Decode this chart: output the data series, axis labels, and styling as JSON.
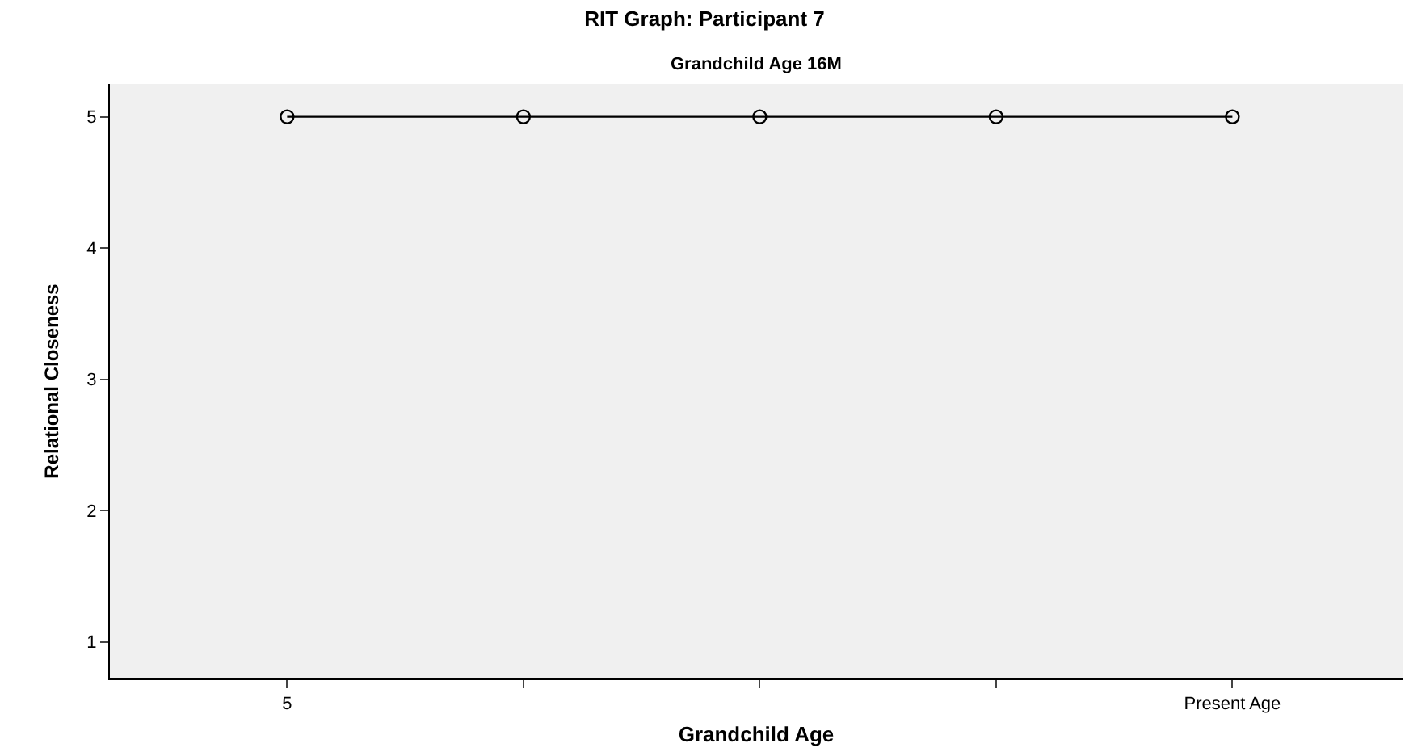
{
  "chart_data": {
    "type": "line",
    "title": "RIT Graph: Participant 7",
    "subtitle": "Grandchild Age 16M",
    "xlabel": "Grandchild Age",
    "ylabel": "Relational Closeness",
    "categories": [
      "5",
      null,
      null,
      null,
      "Present Age"
    ],
    "series": [
      {
        "color": "#000000",
        "values": [
          5,
          5,
          5,
          5,
          5
        ]
      }
    ],
    "ylim": [
      0.72,
      5.25
    ],
    "yticks": [
      1,
      2,
      3,
      4,
      5
    ],
    "grid": false,
    "marker": "circle",
    "line_style": "solid"
  }
}
